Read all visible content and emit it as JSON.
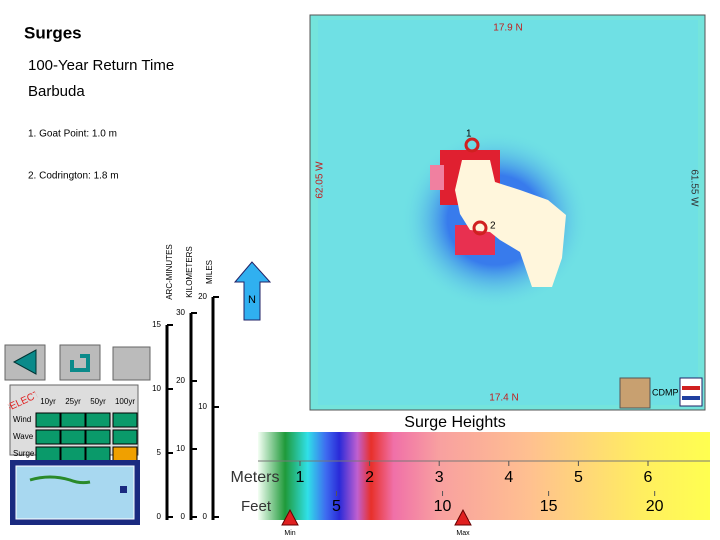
{
  "header": {
    "title": "Surges",
    "subtitle": "100-Year Return Time",
    "location": "Barbuda"
  },
  "points": [
    "1. Goat Point:  1.0 m",
    "2. Codrington:  1.8 m"
  ],
  "map": {
    "north_lat": "17.9 N",
    "south_lat": "17.4 N",
    "west_lon": "62.05 W",
    "east_lon": "61.55 W",
    "markers": [
      "1",
      "2"
    ],
    "north_arrow": "N",
    "logo": "CDMP"
  },
  "scale_bar": {
    "columns": [
      {
        "label": "ARC-MINUTES",
        "ticks": [
          15,
          10,
          5,
          0
        ]
      },
      {
        "label": "KILOMETERS",
        "ticks": [
          30,
          20,
          10,
          0
        ]
      },
      {
        "label": "MILES",
        "ticks": [
          20,
          10,
          0
        ]
      }
    ]
  },
  "selector": {
    "label": "SELECT",
    "periods": [
      "10yr",
      "25yr",
      "50yr",
      "100yr"
    ],
    "hazards": [
      "Wind",
      "Wave",
      "Surge"
    ]
  },
  "legend": {
    "title": "Surge Heights",
    "meters_label": "Meters",
    "meters": [
      1,
      2,
      3,
      4,
      5,
      6
    ],
    "feet_label": "Feet",
    "feet": [
      5,
      10,
      15,
      20
    ],
    "min_label": "Min",
    "max_label": "Max"
  }
}
